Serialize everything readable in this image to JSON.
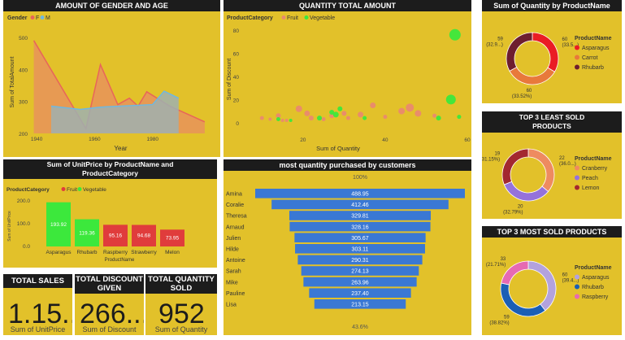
{
  "gender_age": {
    "title": "AMOUNT OF GENDER AND AGE",
    "legend_title": "Gender",
    "ylabel": "Sum of TotalAmount",
    "xlabel": "Year",
    "chart_data": {
      "type": "area",
      "xlim": [
        1938,
        2000
      ],
      "ylim": [
        200,
        520
      ],
      "x_ticks": [
        "1940",
        "1960",
        "1980"
      ],
      "y_ticks": [
        "200",
        "300",
        "400",
        "500"
      ],
      "series": [
        {
          "name": "F",
          "color": "#e8655a",
          "fill": "#e8935a",
          "x": [
            1939,
            1957,
            1962,
            1968,
            1972,
            1975,
            1978,
            1986,
            1998
          ],
          "y": [
            490,
            215,
            415,
            290,
            310,
            285,
            330,
            285,
            236
          ]
        },
        {
          "name": "M",
          "color": "#6fb8e0",
          "fill": "#9fb0b0",
          "x": [
            1945,
            1955,
            1962,
            1980,
            1984,
            1989
          ],
          "y": [
            285,
            275,
            282,
            290,
            332,
            310
          ]
        }
      ]
    }
  },
  "qty_total": {
    "title": "QUANTITY TOTAL AMOUNT",
    "legend_title": "ProductCategory",
    "ylabel": "Sum of Discount",
    "xlabel": "Sum of Quantity",
    "chart_data": {
      "type": "scatter",
      "xlim": [
        5,
        60
      ],
      "ylim": [
        -10,
        85
      ],
      "x_ticks": [
        20,
        40,
        60
      ],
      "y_ticks": [
        0,
        20,
        40,
        60,
        80
      ],
      "series": [
        {
          "name": "Fruit",
          "color": "#e98a6e",
          "points": [
            {
              "x": 10,
              "y": 4,
              "r": 2.5
            },
            {
              "x": 12,
              "y": 3,
              "r": 2
            },
            {
              "x": 14,
              "y": 6,
              "r": 3
            },
            {
              "x": 15,
              "y": 2,
              "r": 2
            },
            {
              "x": 19,
              "y": 12,
              "r": 4
            },
            {
              "x": 21,
              "y": 8,
              "r": 3.5
            },
            {
              "x": 22,
              "y": 4,
              "r": 3
            },
            {
              "x": 25,
              "y": 3,
              "r": 2.5
            },
            {
              "x": 30,
              "y": 8,
              "r": 3
            },
            {
              "x": 31,
              "y": 4,
              "r": 2.5
            },
            {
              "x": 34,
              "y": 7,
              "r": 3.5
            },
            {
              "x": 37,
              "y": 15,
              "r": 3.5
            },
            {
              "x": 44,
              "y": 10,
              "r": 4
            },
            {
              "x": 46,
              "y": 13,
              "r": 5
            },
            {
              "x": 48,
              "y": 8,
              "r": 4
            },
            {
              "x": 52,
              "y": 6,
              "r": 2.5
            },
            {
              "x": 40,
              "y": 5,
              "r": 2.5
            },
            {
              "x": 16,
              "y": 2,
              "r": 2
            },
            {
              "x": 27,
              "y": 6,
              "r": 3
            }
          ]
        },
        {
          "name": "Vegetable",
          "color": "#3ce83c",
          "points": [
            {
              "x": 14,
              "y": 3,
              "r": 2.5
            },
            {
              "x": 17,
              "y": 2,
              "r": 2
            },
            {
              "x": 24,
              "y": 4,
              "r": 3
            },
            {
              "x": 27,
              "y": 9,
              "r": 3
            },
            {
              "x": 28,
              "y": 7,
              "r": 3.5
            },
            {
              "x": 29,
              "y": 12,
              "r": 3
            },
            {
              "x": 35,
              "y": 4,
              "r": 2.5
            },
            {
              "x": 53,
              "y": 4,
              "r": 3
            },
            {
              "x": 56,
              "y": 20,
              "r": 6
            },
            {
              "x": 57,
              "y": 76,
              "r": 7
            },
            {
              "x": 58,
              "y": 5,
              "r": 2.5
            }
          ]
        }
      ]
    }
  },
  "qty_by_product": {
    "title": "Sum of Quantity by ProductName",
    "legend_title": "ProductName",
    "chart_data": {
      "type": "pie",
      "slices": [
        {
          "name": "Asparagus",
          "value": 60,
          "pct": "(33.5...)",
          "color": "#ea1c24"
        },
        {
          "name": "Carrot",
          "value": 60,
          "pct": "(33.52%)",
          "color": "#e8793b"
        },
        {
          "name": "Rhubarb",
          "value": 59,
          "pct": "(32.9...)",
          "color": "#6e1e2f"
        }
      ]
    }
  },
  "least_sold": {
    "title": "TOP 3 LEAST SOLD PRODUCTS",
    "legend_title": "ProductName",
    "chart_data": {
      "type": "pie",
      "slices": [
        {
          "name": "Cranberry",
          "value": 22,
          "pct": "(36.0...)",
          "color": "#ee8b60"
        },
        {
          "name": "Peach",
          "value": 20,
          "pct": "(32.79%)",
          "color": "#9572db"
        },
        {
          "name": "Lemon",
          "value": 19,
          "pct": "(31.15%)",
          "color": "#a32830"
        }
      ]
    }
  },
  "most_sold": {
    "title": "TOP 3 MOST SOLD PRODUCTS",
    "legend_title": "ProductName",
    "chart_data": {
      "type": "pie",
      "slices": [
        {
          "name": "Asparagus",
          "value": 60,
          "pct": "(39.4...)",
          "color": "#b3a2dd"
        },
        {
          "name": "Rhubarb",
          "value": 59,
          "pct": "(38.82%)",
          "color": "#1b5fb5"
        },
        {
          "name": "Raspberry",
          "value": 33,
          "pct": "(21.71%)",
          "color": "#e66ab2"
        }
      ]
    }
  },
  "unitprice": {
    "title": "Sum of UnitPrice by ProductName and ProductCategory",
    "legend_title": "ProductCategory",
    "legend": [
      {
        "name": "Fruit",
        "color": "#e03c3c"
      },
      {
        "name": "Vegetable",
        "color": "#3ce83c"
      }
    ],
    "ylabel": "Sum of UnitPrice",
    "xlabel": "ProductName",
    "chart_data": {
      "type": "bar",
      "ylim": [
        0,
        250
      ],
      "y_ticks": [
        "0.0",
        "100.0",
        "200.0"
      ],
      "categories": [
        "Asparagus",
        "Rhubarb",
        "Raspberry",
        "Strawberry",
        "Melon"
      ],
      "values": [
        193.92,
        119.36,
        95.16,
        94.68,
        73.95
      ],
      "labels": [
        "193.92",
        "119.36",
        "95.16",
        "94.68",
        "73.95"
      ],
      "colors": [
        "#3ce83c",
        "#3ce83c",
        "#e03c3c",
        "#e03c3c",
        "#e03c3c"
      ]
    }
  },
  "funnel": {
    "title": "most quantity purchased by customers",
    "top_pct": "100%",
    "bottom_pct": "43.6%",
    "chart_data": {
      "type": "bar",
      "categories": [
        "Amina",
        "Coralie",
        "Theresa",
        "Arnaud",
        "Julien",
        "Hilde",
        "Antoine",
        "Sarah",
        "Mike",
        "Pauline",
        "Lisa"
      ],
      "values": [
        488.95,
        412.46,
        329.81,
        328.16,
        305.67,
        303.11,
        290.31,
        274.13,
        263.96,
        237.4,
        213.15
      ],
      "labels": [
        "488.95",
        "412.46",
        "329.81",
        "328.16",
        "305.67",
        "303.11",
        "290.31",
        "274.13",
        "263.96",
        "237.40",
        "213.15"
      ],
      "color": "#3a78d4"
    }
  },
  "kpis": [
    {
      "title": "TOTAL SALES",
      "value": "1.15...",
      "sub": "Sum of UnitPrice"
    },
    {
      "title": "TOTAL DISCOUNT GIVEN",
      "value": "266....",
      "sub": "Sum of Discount"
    },
    {
      "title": "TOTAL QUANTITY SOLD",
      "value": "952",
      "sub": "Sum of Quantity"
    }
  ]
}
